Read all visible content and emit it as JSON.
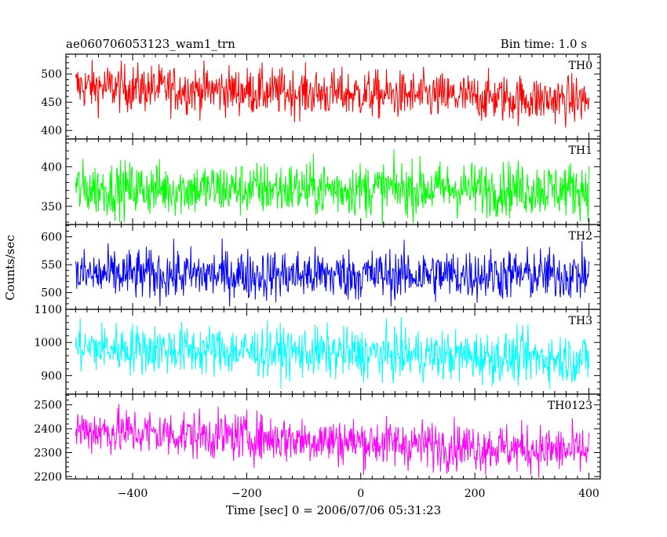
{
  "header": {
    "title": "ae060706053123_wam1_trn",
    "bin_time": "Bin time: 1.0 s"
  },
  "axes": {
    "ylabel": "Counts/sec",
    "xlabel": "Time [sec] 0 = 2006/07/06 05:31:23"
  },
  "chart_data": {
    "type": "line",
    "x_range": [
      -500,
      400
    ],
    "xlim": [
      -517,
      420
    ],
    "x_ticks": [
      -400,
      -200,
      0,
      200,
      400
    ],
    "x_tick_labels": [
      "−400",
      "−200",
      "0",
      "200",
      "400"
    ],
    "bin_time_s": 1.0,
    "panels": [
      {
        "name": "TH0",
        "color": "#ff0000",
        "ylim": [
          385,
          535
        ],
        "y_ticks": [
          400,
          450,
          500
        ],
        "y_tick_labels": [
          "400",
          "450",
          "500"
        ],
        "trend_start": 478,
        "trend_end": 453,
        "noise_amplitude": 21,
        "y_min": 390,
        "y_max": 535
      },
      {
        "name": "TH1",
        "color": "#00ff00",
        "ylim": [
          327,
          435
        ],
        "y_ticks": [
          350,
          400
        ],
        "y_tick_labels": [
          "350",
          "400"
        ],
        "trend_start": 372,
        "trend_end": 372,
        "noise_amplitude": 17,
        "y_min": 328,
        "y_max": 432
      },
      {
        "name": "TH2",
        "color": "#0000ff",
        "ylim": [
          470,
          622
        ],
        "y_ticks": [
          500,
          550,
          600
        ],
        "y_tick_labels": [
          "500",
          "550",
          "600"
        ],
        "trend_start": 532,
        "trend_end": 532,
        "noise_amplitude": 23,
        "y_min": 475,
        "y_max": 620
      },
      {
        "name": "TH3",
        "color": "#00ffff",
        "ylim": [
          844,
          1100
        ],
        "y_ticks": [
          900,
          1000,
          1100
        ],
        "y_tick_labels": [
          "900",
          "1000",
          "1100"
        ],
        "trend_start": 985,
        "trend_end": 950,
        "noise_amplitude": 38,
        "y_min": 860,
        "y_max": 1100
      },
      {
        "name": "TH0123",
        "color": "#ff00ff",
        "ylim": [
          2190,
          2545
        ],
        "y_ticks": [
          2200,
          2300,
          2400,
          2500
        ],
        "y_tick_labels": [
          "2200",
          "2300",
          "2400",
          "2500"
        ],
        "trend_start": 2395,
        "trend_end": 2305,
        "noise_amplitude": 50,
        "y_min": 2195,
        "y_max": 2545
      }
    ]
  }
}
